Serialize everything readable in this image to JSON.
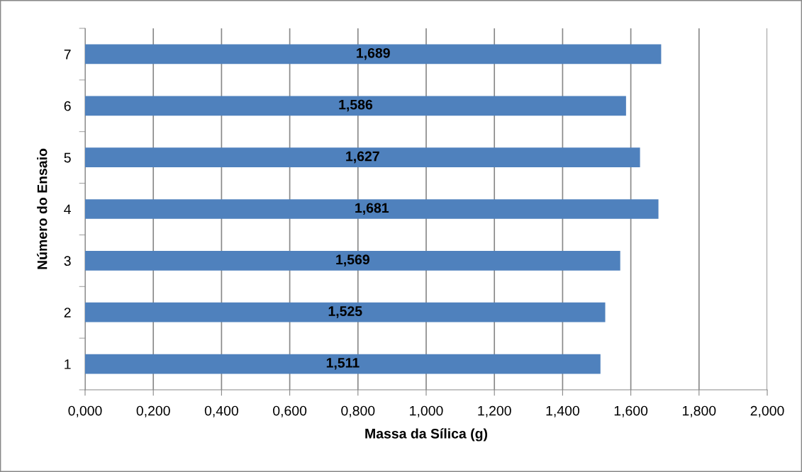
{
  "chart_data": {
    "type": "bar",
    "orientation": "horizontal",
    "xlabel": "Massa da Sílica (g)",
    "ylabel": "Número do Ensaio",
    "categories": [
      "7",
      "6",
      "5",
      "4",
      "3",
      "2",
      "1"
    ],
    "values": [
      1.689,
      1.586,
      1.627,
      1.681,
      1.569,
      1.525,
      1.511
    ],
    "value_labels": [
      "1,689",
      "1,586",
      "1,627",
      "1,681",
      "1,569",
      "1,525",
      "1,511"
    ],
    "color": "#4f81bd",
    "xlim": [
      0,
      2
    ],
    "xticks": [
      {
        "value": 0,
        "label": "0,000"
      },
      {
        "value": 0.2,
        "label": "0,200"
      },
      {
        "value": 0.4,
        "label": "0,400"
      },
      {
        "value": 0.6,
        "label": "0,600"
      },
      {
        "value": 0.8,
        "label": "0,800"
      },
      {
        "value": 1.0,
        "label": "1,000"
      },
      {
        "value": 1.2,
        "label": "1,200"
      },
      {
        "value": 1.4,
        "label": "1,400"
      },
      {
        "value": 1.6,
        "label": "1,600"
      },
      {
        "value": 1.8,
        "label": "1,800"
      },
      {
        "value": 2.0,
        "label": "2,000"
      }
    ],
    "grid": "x"
  }
}
